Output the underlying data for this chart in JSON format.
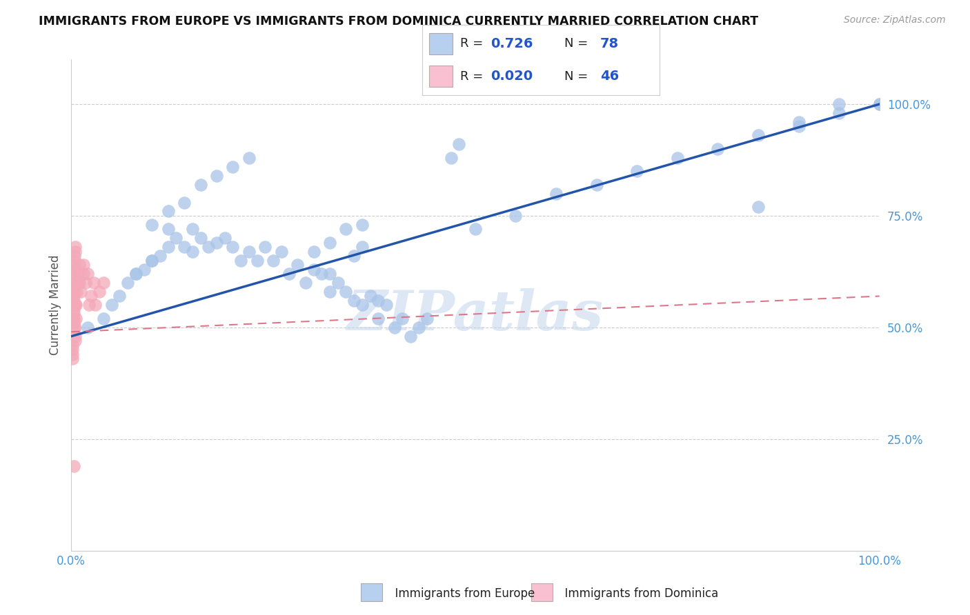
{
  "title": "IMMIGRANTS FROM EUROPE VS IMMIGRANTS FROM DOMINICA CURRENTLY MARRIED CORRELATION CHART",
  "source": "Source: ZipAtlas.com",
  "ylabel": "Currently Married",
  "xlim": [
    0.0,
    1.0
  ],
  "ylim": [
    0.0,
    1.1
  ],
  "europe_R": 0.726,
  "europe_N": 78,
  "dominica_R": 0.02,
  "dominica_N": 46,
  "europe_color": "#a8c4e8",
  "dominica_color": "#f4a8b8",
  "europe_line_color": "#2255aa",
  "dominica_line_color": "#dd7788",
  "legend_europe_color": "#b8d0f0",
  "legend_dominica_color": "#f8c0d0",
  "watermark_text": "ZIPatlas",
  "watermark_color": "#c8d8ee",
  "grid_color": "#cccccc",
  "axis_label_color": "#555555",
  "right_tick_color": "#4499dd",
  "right_ytick_vals": [
    0.25,
    0.5,
    0.75,
    1.0
  ],
  "right_ytick_labels": [
    "25.0%",
    "50.0%",
    "75.0%",
    "100.0%"
  ],
  "bottom_left_label": "0.0%",
  "bottom_right_label": "100.0%",
  "legend_R_N_color": "#2255cc",
  "legend_label_color": "#222222",
  "europe_x": [
    0.02,
    0.04,
    0.05,
    0.06,
    0.07,
    0.08,
    0.09,
    0.1,
    0.11,
    0.12,
    0.12,
    0.13,
    0.14,
    0.15,
    0.15,
    0.16,
    0.17,
    0.18,
    0.19,
    0.2,
    0.21,
    0.22,
    0.23,
    0.24,
    0.25,
    0.26,
    0.27,
    0.28,
    0.29,
    0.3,
    0.31,
    0.32,
    0.32,
    0.33,
    0.34,
    0.35,
    0.36,
    0.37,
    0.38,
    0.38,
    0.39,
    0.4,
    0.41,
    0.42,
    0.43,
    0.44,
    0.35,
    0.36,
    0.5,
    0.55,
    0.6,
    0.65,
    0.7,
    0.75,
    0.8,
    0.85,
    0.9,
    0.95,
    1.0,
    1.0,
    0.95,
    0.85,
    0.9,
    0.1,
    0.12,
    0.14,
    0.16,
    0.18,
    0.2,
    0.22,
    0.08,
    0.1,
    0.3,
    0.32,
    0.34,
    0.36,
    0.47,
    0.48
  ],
  "europe_y": [
    0.5,
    0.52,
    0.55,
    0.57,
    0.6,
    0.62,
    0.63,
    0.65,
    0.66,
    0.68,
    0.72,
    0.7,
    0.68,
    0.67,
    0.72,
    0.7,
    0.68,
    0.69,
    0.7,
    0.68,
    0.65,
    0.67,
    0.65,
    0.68,
    0.65,
    0.67,
    0.62,
    0.64,
    0.6,
    0.63,
    0.62,
    0.58,
    0.62,
    0.6,
    0.58,
    0.56,
    0.55,
    0.57,
    0.52,
    0.56,
    0.55,
    0.5,
    0.52,
    0.48,
    0.5,
    0.52,
    0.66,
    0.68,
    0.72,
    0.75,
    0.8,
    0.82,
    0.85,
    0.88,
    0.9,
    0.93,
    0.96,
    0.98,
    1.0,
    1.0,
    1.0,
    0.77,
    0.95,
    0.73,
    0.76,
    0.78,
    0.82,
    0.84,
    0.86,
    0.88,
    0.62,
    0.65,
    0.67,
    0.69,
    0.72,
    0.73,
    0.88,
    0.91
  ],
  "dominica_x": [
    0.003,
    0.003,
    0.003,
    0.003,
    0.003,
    0.003,
    0.003,
    0.003,
    0.003,
    0.003,
    0.003,
    0.003,
    0.003,
    0.004,
    0.004,
    0.004,
    0.004,
    0.005,
    0.005,
    0.005,
    0.005,
    0.005,
    0.005,
    0.006,
    0.006,
    0.007,
    0.008,
    0.009,
    0.01,
    0.01,
    0.012,
    0.015,
    0.015,
    0.018,
    0.02,
    0.022,
    0.025,
    0.028,
    0.03,
    0.035,
    0.04,
    0.002,
    0.002,
    0.002,
    0.002,
    0.003
  ],
  "dominica_y": [
    0.5,
    0.51,
    0.52,
    0.53,
    0.54,
    0.55,
    0.56,
    0.57,
    0.58,
    0.59,
    0.6,
    0.61,
    0.62,
    0.63,
    0.64,
    0.65,
    0.66,
    0.67,
    0.68,
    0.55,
    0.5,
    0.48,
    0.47,
    0.52,
    0.55,
    0.58,
    0.6,
    0.62,
    0.64,
    0.6,
    0.58,
    0.62,
    0.64,
    0.6,
    0.62,
    0.55,
    0.57,
    0.6,
    0.55,
    0.58,
    0.6,
    0.43,
    0.44,
    0.45,
    0.46,
    0.19
  ]
}
